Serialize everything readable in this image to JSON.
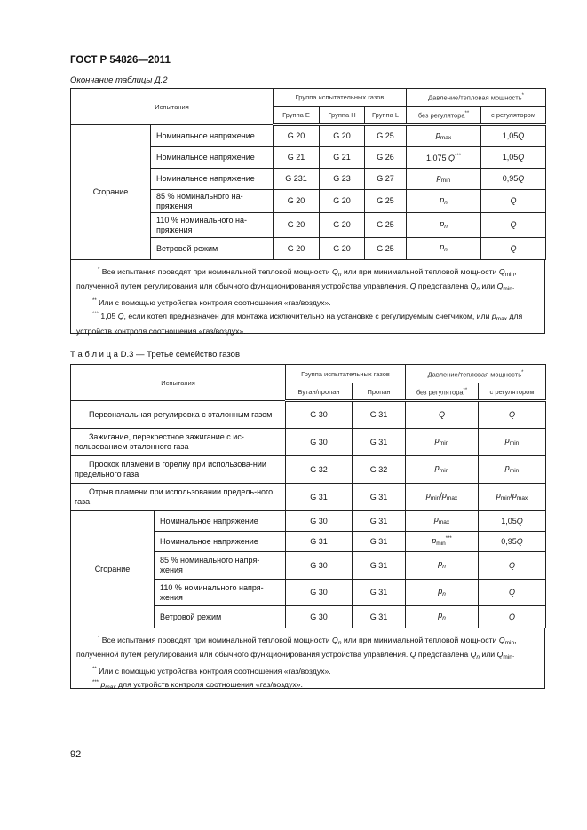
{
  "header": "ГОСТ Р 54826—2011",
  "table1": {
    "caption": "Окончание таблицы Д.2",
    "head": {
      "tests": "Испытания",
      "group": "Группа испытательных газов",
      "pressure": "Давление/тепловая мощность",
      "pressure_mark": "*",
      "cols": [
        "Группа E",
        "Группа H",
        "Группа L"
      ],
      "no_reg": "без регулятора",
      "no_reg_mark": "**",
      "with_reg": "с регулятором"
    },
    "group_label": "Сгорание",
    "rows": [
      {
        "test": "Номинальное напряжение",
        "g": [
          "G 20",
          "G 20",
          "G 25"
        ],
        "nr": "<i>p</i><sub>max</sub>",
        "wr": "1,05<i>Q</i>"
      },
      {
        "test": "Номинальное напряжение",
        "g": [
          "G 21",
          "G 21",
          "G 26"
        ],
        "nr": "1,075 <i>Q</i><sup>***</sup>",
        "wr": "1,05<i>Q</i>"
      },
      {
        "test": "Номинальное напряжение",
        "g": [
          "G 231",
          "G 23",
          "G 27"
        ],
        "nr": "<i>p</i><sub>min</sub>",
        "wr": "0,95<i>Q</i>"
      },
      {
        "test": "85 % номинального на-пряжения",
        "g": [
          "G 20",
          "G 20",
          "G 25"
        ],
        "nr": "<i>p</i><sub><i>n</i></sub>",
        "wr": "<i>Q</i>"
      },
      {
        "test": "110 % номинального на-пряжения",
        "g": [
          "G 20",
          "G 20",
          "G 25"
        ],
        "nr": "<i>p</i><sub><i>n</i></sub>",
        "wr": "<i>Q</i>"
      },
      {
        "test": "Ветровой режим",
        "g": [
          "G 20",
          "G 20",
          "G 25"
        ],
        "nr": "<i>p</i><sub><i>n</i></sub>",
        "wr": "<i>Q</i>"
      }
    ],
    "notes": [
      "<sup>*</sup> Все испытания проводят при номинальной тепловой мощности <i>Q<sub>n</sub></i> или при минимальной тепловой мощности <i>Q</i><sub>min</sub>, полученной путем регулирования или обычного функционирования устройства управления. <i>Q</i> представлена <i>Q<sub>n</sub></i> или <i>Q</i><sub>min</sub>.",
      "<sup>**</sup> Или с помощью устройства контроля соотношения «газ/воздух».",
      "<sup>***</sup> 1,05 <i>Q</i>, если котел предназначен для монтажа исключительно на установке с регулируемым счетчиком, или <i>p</i><sub>max</sub> для устройств контроля соотношения «газ/воздух»."
    ]
  },
  "table2": {
    "caption": "Т а б л и ц а  D.3 — Третье семейство газов",
    "head": {
      "tests": "Испытания",
      "group": "Группа испытательных газов",
      "pressure": "Давление/тепловая мощность",
      "pressure_mark": "*",
      "cols": [
        "Бутан/пропан",
        "Пропан"
      ],
      "no_reg": "без регулятора",
      "no_reg_mark": "**",
      "with_reg": "с регулятором"
    },
    "single_rows": [
      {
        "test": "Первоначальная регулировка с эталонным газом",
        "g": [
          "G 30",
          "G 31"
        ],
        "nr": "<i>Q</i>",
        "wr": "<i>Q</i>"
      },
      {
        "test": "Зажигание, перекрестное зажигание с ис-пользованием эталонного газа",
        "g": [
          "G 30",
          "G 31"
        ],
        "nr": "<i>p</i><sub>min</sub>",
        "wr": "<i>p</i><sub>min</sub>"
      },
      {
        "test": "Проскок пламени в горелку при использова-нии предельного газа",
        "g": [
          "G 32",
          "G 32"
        ],
        "nr": "<i>p</i><sub>min</sub>",
        "wr": "<i>p</i><sub>min</sub>"
      },
      {
        "test": "Отрыв пламени при использовании предель-ного газа",
        "g": [
          "G 31",
          "G 31"
        ],
        "nr": "<i>p</i><sub>min</sub>/<i>p</i><sub>max</sub>",
        "wr": "<i>p</i><sub>min</sub>/<i>p</i><sub>max</sub>"
      }
    ],
    "group_label": "Сгорание",
    "rows": [
      {
        "test": "Номинальное напряжение",
        "g": [
          "G 30",
          "G 31"
        ],
        "nr": "<i>p</i><sub>max</sub>",
        "wr": "1,05<i>Q</i>"
      },
      {
        "test": "Номинальное напряжение",
        "g": [
          "G 31",
          "G 31"
        ],
        "nr": "<i>p</i><sub>min</sub><sup>***</sup>",
        "wr": "0,95<i>Q</i>"
      },
      {
        "test": "85 % номинального напря-жения",
        "g": [
          "G 30",
          "G 31"
        ],
        "nr": "<i>p</i><sub><i>n</i></sub>",
        "wr": "<i>Q</i>"
      },
      {
        "test": "110 % номинального напря-жения",
        "g": [
          "G 30",
          "G 31"
        ],
        "nr": "<i>p</i><sub><i>n</i></sub>",
        "wr": "<i>Q</i>"
      },
      {
        "test": "Ветровой режим",
        "g": [
          "G 30",
          "G 31"
        ],
        "nr": "<i>p</i><sub><i>n</i></sub>",
        "wr": "<i>Q</i>"
      }
    ],
    "notes": [
      "<sup>*</sup> Все испытания проводят при номинальной тепловой мощности <i>Q<sub>n</sub></i> или при минимальной тепловой мощности <i>Q</i><sub>min</sub>, полученной путем регулирования или обычного функционирования устройства управления. <i>Q</i> представлена <i>Q<sub>n</sub></i> или <i>Q</i><sub>min</sub>.",
      "<sup>**</sup> Или с помощью устройства контроля соотношения «газ/воздух».",
      "<sup>***</sup> <i>p<sub>max</sub></i> для устройств контроля соотношения «газ/воздух»."
    ]
  },
  "page_number": "92"
}
